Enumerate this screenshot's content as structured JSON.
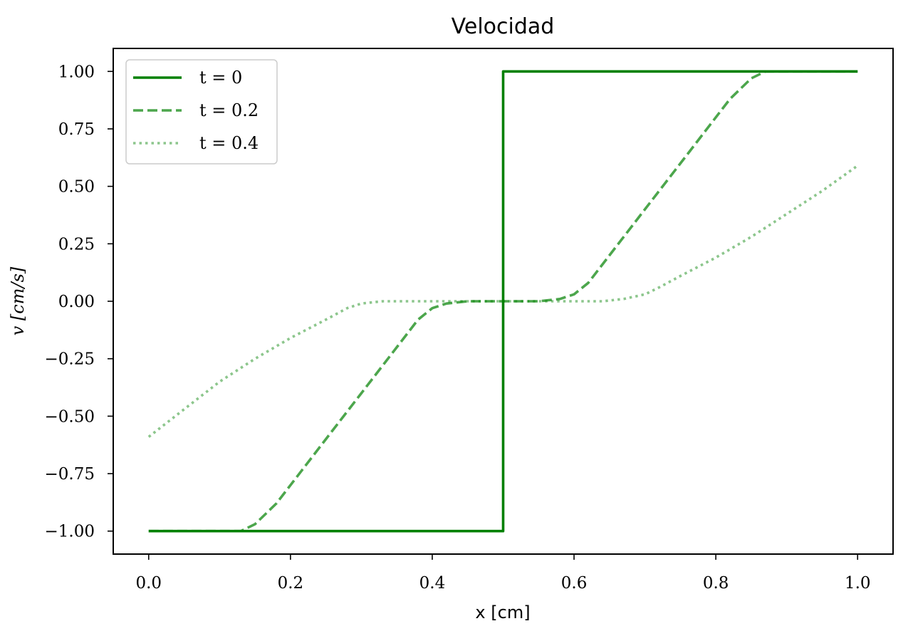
{
  "chart_data": {
    "type": "line",
    "title": "Velocidad",
    "xlabel": "x [cm]",
    "ylabel": "v [cm/s]",
    "xlim": [
      -0.05,
      1.05
    ],
    "ylim": [
      -1.1,
      1.1
    ],
    "xticks": [
      0.0,
      0.2,
      0.4,
      0.6,
      0.8,
      1.0
    ],
    "xtick_labels": [
      "0.0",
      "0.2",
      "0.4",
      "0.6",
      "0.8",
      "1.0"
    ],
    "yticks": [
      1.0,
      0.75,
      0.5,
      0.25,
      0.0,
      -0.25,
      -0.5,
      -0.75,
      -1.0
    ],
    "ytick_labels": [
      "1.00",
      "0.75",
      "0.50",
      "0.25",
      "0.00",
      "−0.25",
      "−0.50",
      "−0.75",
      "−1.00"
    ],
    "grid": false,
    "legend_position": "top-left",
    "series": [
      {
        "name": "t = 0",
        "style": "solid",
        "color": "#008000",
        "opacity": 1.0,
        "x": [
          0.0,
          0.5,
          0.5,
          1.0
        ],
        "y": [
          -1.0,
          -1.0,
          1.0,
          1.0
        ]
      },
      {
        "name": "t = 0.2",
        "style": "dashed",
        "color": "#008000",
        "opacity": 0.7,
        "x": [
          0.0,
          0.13,
          0.15,
          0.18,
          0.2,
          0.25,
          0.3,
          0.35,
          0.38,
          0.4,
          0.42,
          0.45,
          0.5,
          0.55,
          0.58,
          0.6,
          0.62,
          0.65,
          0.7,
          0.75,
          0.8,
          0.82,
          0.85,
          0.87,
          0.9,
          1.0
        ],
        "y": [
          -1.0,
          -1.0,
          -0.97,
          -0.88,
          -0.8,
          -0.6,
          -0.4,
          -0.2,
          -0.08,
          -0.03,
          -0.01,
          0.0,
          0.0,
          0.0,
          0.01,
          0.03,
          0.08,
          0.2,
          0.4,
          0.6,
          0.8,
          0.88,
          0.97,
          1.0,
          1.0,
          1.0
        ]
      },
      {
        "name": "t = 0.4",
        "style": "dotted",
        "color": "#008000",
        "opacity": 0.45,
        "x": [
          0.0,
          0.05,
          0.1,
          0.15,
          0.2,
          0.25,
          0.28,
          0.3,
          0.33,
          0.36,
          0.4,
          0.5,
          0.6,
          0.64,
          0.67,
          0.7,
          0.72,
          0.75,
          0.8,
          0.85,
          0.9,
          0.95,
          1.0
        ],
        "y": [
          -0.59,
          -0.47,
          -0.35,
          -0.25,
          -0.16,
          -0.08,
          -0.03,
          -0.01,
          0.0,
          0.0,
          0.0,
          0.0,
          0.0,
          0.0,
          0.01,
          0.03,
          0.06,
          0.11,
          0.19,
          0.28,
          0.38,
          0.48,
          0.59
        ]
      }
    ]
  }
}
